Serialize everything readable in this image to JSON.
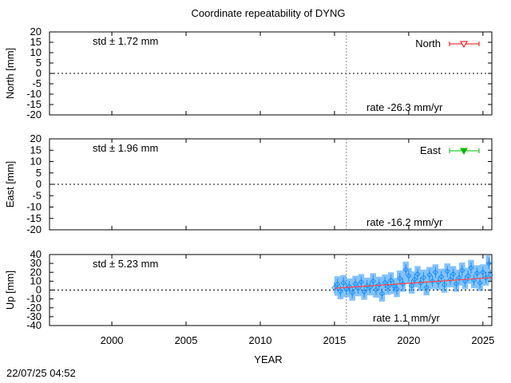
{
  "footer": {
    "timestamp": "22/07/25 04:52"
  },
  "chart_data": {
    "type": "scatter",
    "title": "Coordinate repeatability of DYNG",
    "xlabel": "YEAR",
    "xlim": [
      1995.8,
      2025.6
    ],
    "xticks": [
      2000,
      2005,
      2010,
      2015,
      2020,
      2025
    ],
    "event_lines_x": [
      2015.8
    ],
    "grid": false,
    "panels": [
      {
        "name": "North",
        "ylabel": "North [mm]",
        "ylim": [
          -20,
          20
        ],
        "yticks": [
          20,
          15,
          10,
          5,
          0,
          -5,
          -10,
          -15,
          -20
        ],
        "std_text": "std ± 1.72 mm",
        "rate_text": "rate -26.3 mm/yr",
        "legend": "North",
        "legend_position": "top-right",
        "color": "#ff0000",
        "marker": "triangle-down-open",
        "points": []
      },
      {
        "name": "East",
        "ylabel": "East [mm]",
        "ylim": [
          -20,
          20
        ],
        "yticks": [
          20,
          15,
          10,
          5,
          0,
          -5,
          -10,
          -15,
          -20
        ],
        "std_text": "std ± 1.96 mm",
        "rate_text": "rate -16.2 mm/yr",
        "legend": "East",
        "legend_position": "top-right",
        "color": "#00bb00",
        "marker": "triangle-down-filled",
        "points": []
      },
      {
        "name": "Up",
        "ylabel": "Up [mm]",
        "ylim": [
          -40,
          40
        ],
        "yticks": [
          40,
          30,
          20,
          10,
          0,
          -10,
          -20,
          -30,
          -40
        ],
        "std_text": "std ± 5.23 mm",
        "rate_text": "rate  1.1 mm/yr",
        "legend": "",
        "color": "#1e90ff",
        "trend_color": "#ff4444",
        "marker": "diamond-open",
        "trend": {
          "x": [
            2015.0,
            2025.6
          ],
          "y": [
            2.0,
            14.0
          ]
        },
        "points": [
          [
            2015.0,
            2.5
          ],
          [
            2015.2,
            6.5
          ],
          [
            2015.4,
            -1.5
          ],
          [
            2015.6,
            8.0
          ],
          [
            2015.8,
            1.0
          ],
          [
            2016.0,
            4.0
          ],
          [
            2016.2,
            -3.0
          ],
          [
            2016.4,
            7.0
          ],
          [
            2016.6,
            2.0
          ],
          [
            2016.8,
            9.0
          ],
          [
            2017.0,
            -2.0
          ],
          [
            2017.2,
            5.0
          ],
          [
            2017.4,
            3.0
          ],
          [
            2017.6,
            10.0
          ],
          [
            2017.8,
            0.5
          ],
          [
            2018.0,
            6.0
          ],
          [
            2018.2,
            -4.0
          ],
          [
            2018.4,
            8.5
          ],
          [
            2018.6,
            3.5
          ],
          [
            2018.8,
            11.0
          ],
          [
            2019.0,
            4.5
          ],
          [
            2019.2,
            1.0
          ],
          [
            2019.4,
            13.0
          ],
          [
            2019.6,
            7.0
          ],
          [
            2019.8,
            23.0
          ],
          [
            2020.0,
            16.0
          ],
          [
            2020.2,
            5.0
          ],
          [
            2020.4,
            12.0
          ],
          [
            2020.6,
            18.0
          ],
          [
            2020.8,
            8.0
          ],
          [
            2021.0,
            14.0
          ],
          [
            2021.2,
            3.0
          ],
          [
            2021.4,
            17.0
          ],
          [
            2021.6,
            10.0
          ],
          [
            2021.8,
            20.0
          ],
          [
            2022.0,
            9.0
          ],
          [
            2022.2,
            15.0
          ],
          [
            2022.4,
            6.0
          ],
          [
            2022.6,
            21.0
          ],
          [
            2022.8,
            12.0
          ],
          [
            2023.0,
            18.0
          ],
          [
            2023.2,
            7.0
          ],
          [
            2023.4,
            14.0
          ],
          [
            2023.6,
            22.0
          ],
          [
            2023.8,
            10.0
          ],
          [
            2024.0,
            16.0
          ],
          [
            2024.2,
            25.0
          ],
          [
            2024.4,
            11.0
          ],
          [
            2024.6,
            19.0
          ],
          [
            2024.8,
            8.0
          ],
          [
            2025.0,
            20.0
          ],
          [
            2025.2,
            14.0
          ],
          [
            2025.4,
            30.0
          ],
          [
            2025.5,
            17.0
          ]
        ]
      }
    ]
  }
}
